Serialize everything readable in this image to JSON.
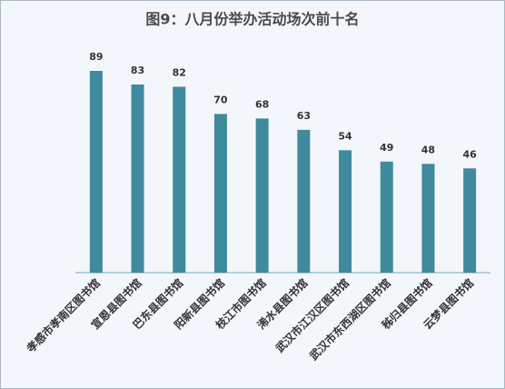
{
  "chart_data": {
    "type": "bar",
    "title": "图9：八月份举办活动场次前十名",
    "categories": [
      "孝感市孝南区图书馆",
      "宣恩县图书馆",
      "巴东县图书馆",
      "阳新县图书馆",
      "枝江市图书馆",
      "浠水县图书馆",
      "武汉市江汉区图书馆",
      "武汉市东西湖区图书馆",
      "秭归县图书馆",
      "云梦县图书馆"
    ],
    "values": [
      89,
      83,
      82,
      70,
      68,
      63,
      54,
      49,
      48,
      46
    ],
    "color": "#3f8a9d"
  }
}
